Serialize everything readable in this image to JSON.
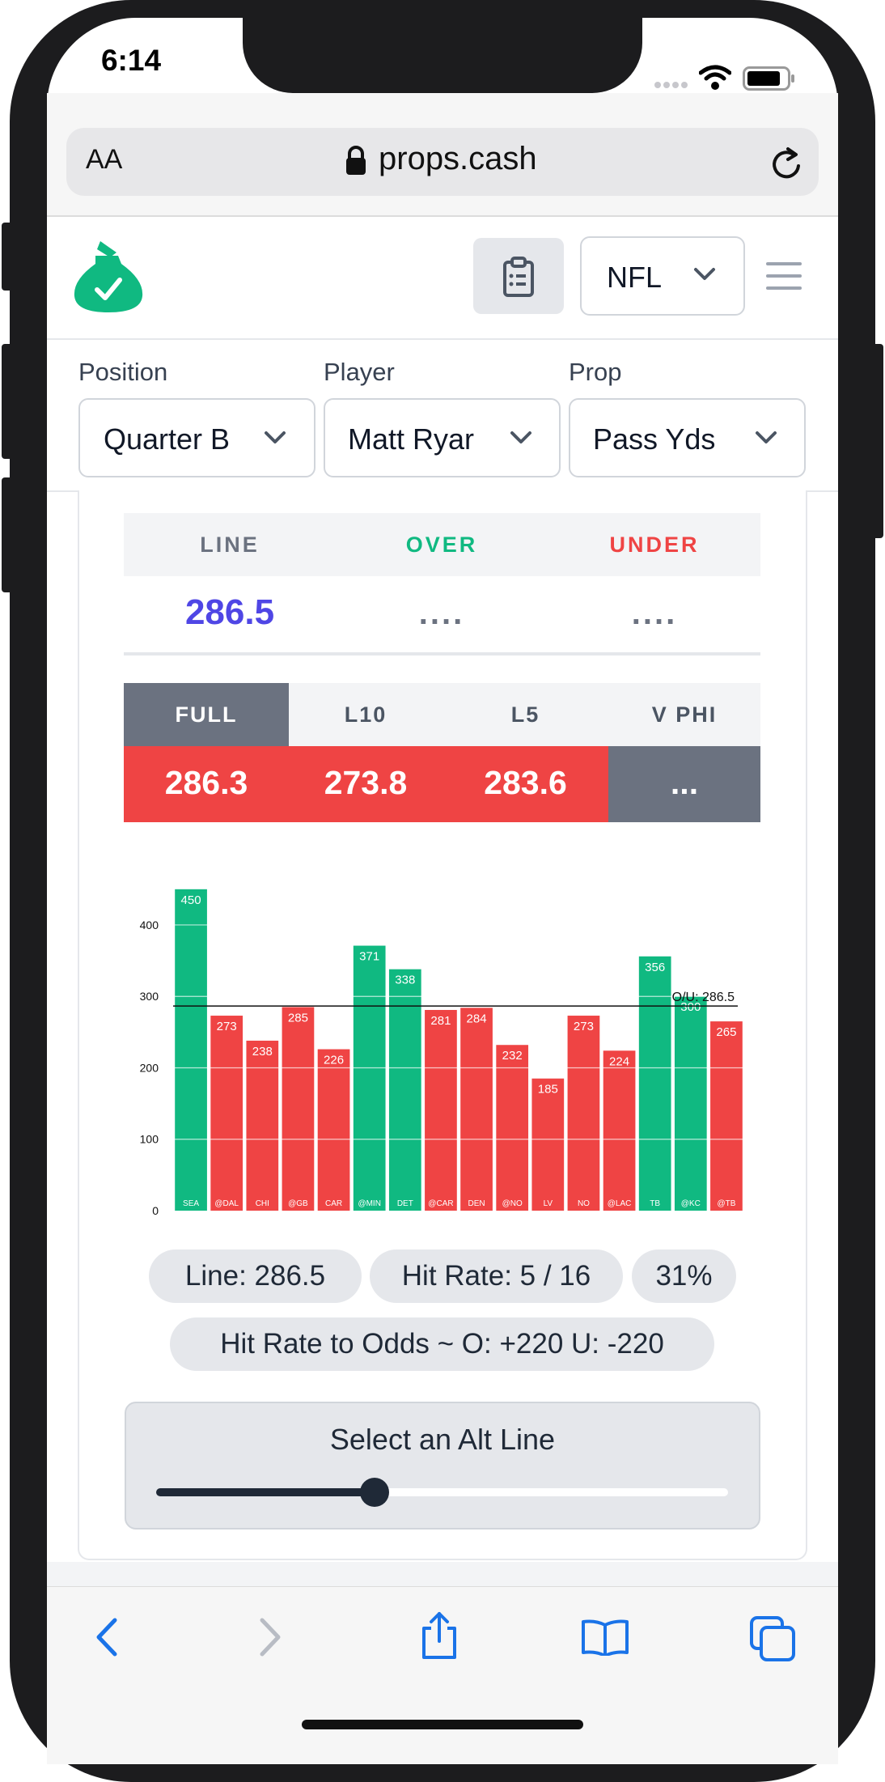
{
  "status": {
    "time": "6:14"
  },
  "browser": {
    "text_size_label": "AA",
    "url": "props.cash"
  },
  "header": {
    "league": "NFL"
  },
  "filters": [
    {
      "label": "Position",
      "value": "Quarter B"
    },
    {
      "label": "Player",
      "value": "Matt Ryar"
    },
    {
      "label": "Prop",
      "value": "Pass Yds"
    }
  ],
  "line_table": {
    "headers": {
      "line": "LINE",
      "over": "OVER",
      "under": "UNDER"
    },
    "values": {
      "line": "286.5",
      "over": "....",
      "under": "...."
    }
  },
  "splits": {
    "tabs": [
      "FULL",
      "L10",
      "L5",
      "V PHI"
    ],
    "values": [
      "286.3",
      "273.8",
      "283.6",
      "..."
    ]
  },
  "chart_data": {
    "type": "bar",
    "categories": [
      "SEA",
      "@DAL",
      "CHI",
      "@GB",
      "CAR",
      "@MIN",
      "DET",
      "@CAR",
      "DEN",
      "@NO",
      "LV",
      "NO",
      "@LAC",
      "TB",
      "@KC",
      "@TB"
    ],
    "values": [
      450,
      273,
      238,
      285,
      226,
      371,
      338,
      281,
      284,
      232,
      185,
      273,
      224,
      356,
      300,
      265
    ],
    "ylim": [
      0,
      450
    ],
    "yticks": [
      0,
      100,
      200,
      300,
      400
    ],
    "reference_line": {
      "value": 286.5,
      "label": "O/U: 286.5"
    },
    "colors": {
      "over": "#10b981",
      "under": "#ef4444"
    },
    "grid": true
  },
  "stats": {
    "line": "Line: 286.5",
    "hit_rate": "Hit Rate: 5 / 16",
    "pct": "31%",
    "odds": "Hit Rate to Odds ~ O: +220 U: -220"
  },
  "alt_line": {
    "label": "Select an Alt Line",
    "slider_fraction": 0.38
  },
  "colors": {
    "brand": "#10b981",
    "line_value": "#4f46e5",
    "over": "#10b981",
    "under": "#ef4444",
    "neutral": "#6b7280"
  }
}
